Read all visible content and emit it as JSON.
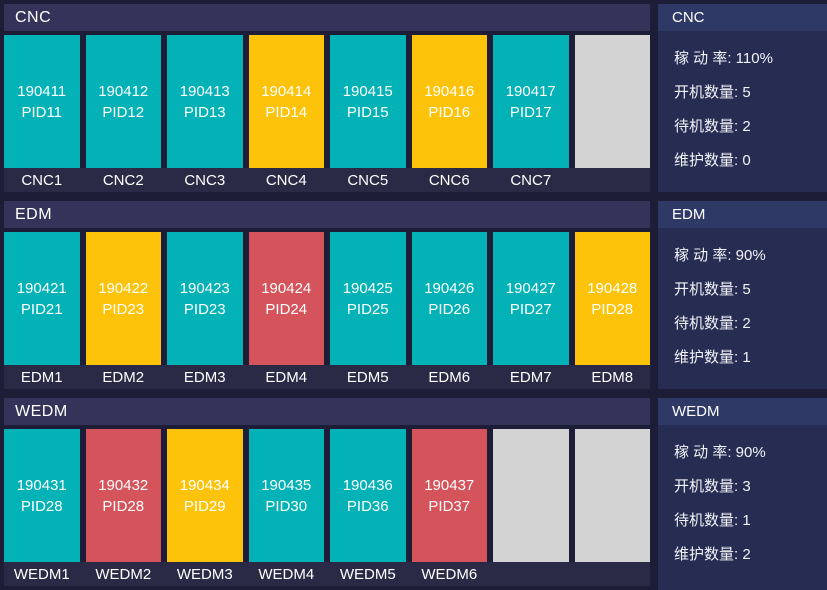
{
  "status_colors": {
    "running": "#03b2b6",
    "standby": "#fdc30b",
    "maintenance": "#d5545b",
    "empty": "#d3d3d3"
  },
  "stat_labels": {
    "utilization": "稼 动 率:",
    "running": "开机数量:",
    "standby": "待机数量:",
    "maintenance": "维护数量:"
  },
  "groups": [
    {
      "title": "CNC",
      "machines": [
        {
          "id": "190411",
          "pid": "PID11",
          "label": "CNC1",
          "status": "running"
        },
        {
          "id": "190412",
          "pid": "PID12",
          "label": "CNC2",
          "status": "running"
        },
        {
          "id": "190413",
          "pid": "PID13",
          "label": "CNC3",
          "status": "running"
        },
        {
          "id": "190414",
          "pid": "PID14",
          "label": "CNC4",
          "status": "standby"
        },
        {
          "id": "190415",
          "pid": "PID15",
          "label": "CNC5",
          "status": "running"
        },
        {
          "id": "190416",
          "pid": "PID16",
          "label": "CNC6",
          "status": "standby"
        },
        {
          "id": "190417",
          "pid": "PID17",
          "label": "CNC7",
          "status": "running"
        },
        {
          "id": "",
          "pid": "",
          "label": "",
          "status": "empty"
        }
      ],
      "stats": [
        {
          "label": "稼 动 率:",
          "value": "110%"
        },
        {
          "label": "开机数量:",
          "value": "5"
        },
        {
          "label": "待机数量:",
          "value": "2"
        },
        {
          "label": "维护数量:",
          "value": "0"
        }
      ]
    },
    {
      "title": "EDM",
      "machines": [
        {
          "id": "190421",
          "pid": "PID21",
          "label": "EDM1",
          "status": "running"
        },
        {
          "id": "190422",
          "pid": "PID23",
          "label": "EDM2",
          "status": "standby"
        },
        {
          "id": "190423",
          "pid": "PID23",
          "label": "EDM3",
          "status": "running"
        },
        {
          "id": "190424",
          "pid": "PID24",
          "label": "EDM4",
          "status": "maintenance"
        },
        {
          "id": "190425",
          "pid": "PID25",
          "label": "EDM5",
          "status": "running"
        },
        {
          "id": "190426",
          "pid": "PID26",
          "label": "EDM6",
          "status": "running"
        },
        {
          "id": "190427",
          "pid": "PID27",
          "label": "EDM7",
          "status": "running"
        },
        {
          "id": "190428",
          "pid": "PID28",
          "label": "EDM8",
          "status": "standby"
        }
      ],
      "stats": [
        {
          "label": "稼 动 率:",
          "value": "90%"
        },
        {
          "label": "开机数量:",
          "value": "5"
        },
        {
          "label": "待机数量:",
          "value": "2"
        },
        {
          "label": "维护数量:",
          "value": "1"
        }
      ]
    },
    {
      "title": "WEDM",
      "machines": [
        {
          "id": "190431",
          "pid": "PID28",
          "label": "WEDM1",
          "status": "running"
        },
        {
          "id": "190432",
          "pid": "PID28",
          "label": "WEDM2",
          "status": "maintenance"
        },
        {
          "id": "190434",
          "pid": "PID29",
          "label": "WEDM3",
          "status": "standby"
        },
        {
          "id": "190435",
          "pid": "PID30",
          "label": "WEDM4",
          "status": "running"
        },
        {
          "id": "190436",
          "pid": "PID36",
          "label": "WEDM5",
          "status": "running"
        },
        {
          "id": "190437",
          "pid": "PID37",
          "label": "WEDM6",
          "status": "maintenance"
        },
        {
          "id": "",
          "pid": "",
          "label": "",
          "status": "empty"
        },
        {
          "id": "",
          "pid": "",
          "label": "",
          "status": "empty"
        }
      ],
      "stats": [
        {
          "label": "稼 动 率:",
          "value": "90%"
        },
        {
          "label": "开机数量:",
          "value": "3"
        },
        {
          "label": "待机数量:",
          "value": "1"
        },
        {
          "label": "维护数量:",
          "value": "2"
        }
      ]
    }
  ]
}
